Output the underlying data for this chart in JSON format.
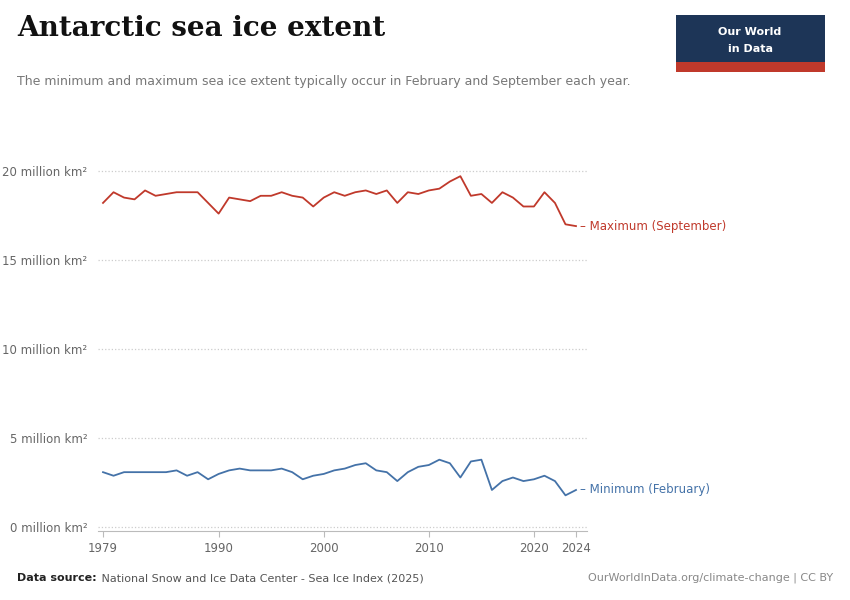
{
  "title": "Antarctic sea ice extent",
  "subtitle": "The minimum and maximum sea ice extent typically occur in February and September each year.",
  "datasource_bold": "Data source:",
  "datasource_rest": " National Snow and Ice Data Center - Sea Ice Index (2025)",
  "credit": "OurWorldInData.org/climate-change | CC BY",
  "max_label": "Maximum (September)",
  "min_label": "Minimum (February)",
  "max_color": "#C0392B",
  "min_color": "#4472a8",
  "bg_color": "#ffffff",
  "grid_color": "#cccccc",
  "logo_bg": "#1d3557",
  "logo_red": "#C0392B",
  "yticks": [
    0,
    5,
    10,
    15,
    20
  ],
  "ytick_labels": [
    "0 million km²",
    "5 million km²",
    "10 million km²",
    "15 million km²",
    "20 million km²"
  ],
  "xticks": [
    1979,
    1990,
    2000,
    2010,
    2020,
    2024
  ],
  "years_max": [
    1979,
    1980,
    1981,
    1982,
    1983,
    1984,
    1985,
    1986,
    1987,
    1988,
    1989,
    1990,
    1991,
    1992,
    1993,
    1994,
    1995,
    1996,
    1997,
    1998,
    1999,
    2000,
    2001,
    2002,
    2003,
    2004,
    2005,
    2006,
    2007,
    2008,
    2009,
    2010,
    2011,
    2012,
    2013,
    2014,
    2015,
    2016,
    2017,
    2018,
    2019,
    2020,
    2021,
    2022,
    2023,
    2024
  ],
  "values_max": [
    18.2,
    18.8,
    18.5,
    18.4,
    18.9,
    18.6,
    18.7,
    18.8,
    18.8,
    18.8,
    18.2,
    17.6,
    18.5,
    18.4,
    18.3,
    18.6,
    18.6,
    18.8,
    18.6,
    18.5,
    18.0,
    18.5,
    18.8,
    18.6,
    18.8,
    18.9,
    18.7,
    18.9,
    18.2,
    18.8,
    18.7,
    18.9,
    19.0,
    19.4,
    19.7,
    18.6,
    18.7,
    18.2,
    18.8,
    18.5,
    18.0,
    18.0,
    18.8,
    18.2,
    17.0,
    16.9
  ],
  "years_min": [
    1979,
    1980,
    1981,
    1982,
    1983,
    1984,
    1985,
    1986,
    1987,
    1988,
    1989,
    1990,
    1991,
    1992,
    1993,
    1994,
    1995,
    1996,
    1997,
    1998,
    1999,
    2000,
    2001,
    2002,
    2003,
    2004,
    2005,
    2006,
    2007,
    2008,
    2009,
    2010,
    2011,
    2012,
    2013,
    2014,
    2015,
    2016,
    2017,
    2018,
    2019,
    2020,
    2021,
    2022,
    2023,
    2024
  ],
  "values_min": [
    3.1,
    2.9,
    3.1,
    3.1,
    3.1,
    3.1,
    3.1,
    3.2,
    2.9,
    3.1,
    2.7,
    3.0,
    3.2,
    3.3,
    3.2,
    3.2,
    3.2,
    3.3,
    3.1,
    2.7,
    2.9,
    3.0,
    3.2,
    3.3,
    3.5,
    3.6,
    3.2,
    3.1,
    2.6,
    3.1,
    3.4,
    3.5,
    3.8,
    3.6,
    2.8,
    3.7,
    3.8,
    2.1,
    2.6,
    2.8,
    2.6,
    2.7,
    2.9,
    2.6,
    1.8,
    2.1
  ],
  "xlim": [
    1978.5,
    2025.0
  ],
  "ylim": [
    -0.2,
    21.0
  ]
}
